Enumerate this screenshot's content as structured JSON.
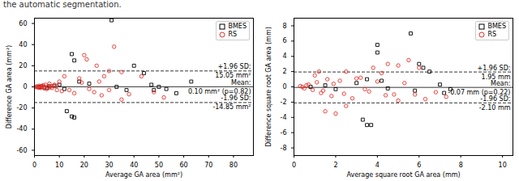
{
  "caption": "the automatic segmentation.",
  "chart_data": [
    {
      "type": "scatter",
      "x_label": "Average GA area (mm²)",
      "y_label": "Difference GA area (mm²)",
      "xlim": [
        0,
        88
      ],
      "xticks": [
        0,
        10,
        20,
        30,
        40,
        50,
        60,
        70,
        80
      ],
      "ylim": [
        -65,
        65
      ],
      "yticks": [
        -60,
        -40,
        -20,
        0,
        20,
        40,
        60
      ],
      "grid": false,
      "legend": "upper right",
      "series": [
        {
          "name": "BMES",
          "color": "#000000",
          "marker": "square",
          "x": [
            31,
            15,
            16,
            13,
            15,
            16,
            40,
            44,
            47,
            48,
            53,
            57,
            63,
            50,
            33,
            37,
            18,
            22,
            10,
            3,
            5,
            8,
            12,
            6,
            2,
            4
          ],
          "values": [
            63,
            31,
            25,
            -23,
            -28,
            -29,
            20,
            13,
            2,
            -3,
            -2,
            -6,
            5,
            0,
            0,
            -3,
            5,
            3,
            2,
            0,
            -1,
            1,
            -2,
            0.5,
            0,
            -0.5
          ]
        },
        {
          "name": "RS",
          "color": "#e8312a",
          "marker": "circle",
          "x": [
            32,
            20,
            21,
            25,
            30,
            28,
            35,
            43,
            38,
            48,
            52,
            35,
            30,
            24,
            22,
            18,
            12,
            10,
            14,
            1,
            1.5,
            2,
            2.5,
            3,
            3.5,
            4,
            4.5,
            5,
            5.5,
            6,
            7,
            8,
            9,
            0.5,
            1,
            2,
            3,
            4,
            6,
            7,
            9,
            11,
            16,
            19,
            26,
            27
          ],
          "values": [
            38,
            30,
            26,
            20,
            15,
            10,
            14,
            10,
            -7,
            -5,
            -10,
            -12,
            -3,
            -5,
            -2,
            8,
            10,
            5,
            -3,
            0.5,
            -0.5,
            1,
            -1,
            0.3,
            1.5,
            -1.5,
            2,
            -2,
            0.5,
            3,
            -1,
            2,
            -3,
            0,
            -0.3,
            -0.8,
            0.8,
            -0.2,
            -0.5,
            0.5,
            1,
            -4,
            -6,
            4,
            5,
            -8
          ]
        }
      ],
      "reference_lines": [
        {
          "name": "+1.96 SD:",
          "value": 15.05,
          "label": "15.05 mm²",
          "line_style": "dashed"
        },
        {
          "name": "Mean:",
          "value": 0.1,
          "label": "0.10 mm² (p=0.82)",
          "line_style": "solid"
        },
        {
          "name": "-1.96 SD:",
          "value": -14.85,
          "label": "-14.85 mm²",
          "line_style": "dashed"
        }
      ]
    },
    {
      "type": "scatter",
      "x_label": "Average square root GA area (mm)",
      "y_label": "Difference square root GA area (mm)",
      "xlim": [
        0,
        10.5
      ],
      "xticks": [
        0,
        2,
        4,
        6,
        8,
        10
      ],
      "ylim": [
        -9,
        9
      ],
      "yticks": [
        -8,
        -6,
        -4,
        -2,
        0,
        2,
        4,
        6,
        8
      ],
      "grid": false,
      "legend": "upper right",
      "series": [
        {
          "name": "BMES",
          "color": "#000000",
          "marker": "square",
          "x": [
            5.6,
            4,
            4,
            3.3,
            3.5,
            3.7,
            6,
            6.5,
            7,
            7.5,
            7.2,
            5.8,
            4.2,
            3,
            2,
            1.5,
            0.8,
            6.2,
            4.5,
            3.5
          ],
          "values": [
            7,
            5.5,
            4.5,
            -4.3,
            -5,
            -5,
            3,
            2,
            0.3,
            -0.3,
            -0.8,
            -0.5,
            0.8,
            0.5,
            -0.3,
            0.2,
            0,
            2.5,
            -0.2,
            1
          ]
        },
        {
          "name": "RS",
          "color": "#e8312a",
          "marker": "circle",
          "x": [
            5.5,
            4.5,
            5,
            6,
            3.8,
            2.5,
            5.8,
            6.8,
            7.3,
            5,
            1.5,
            2,
            2.5,
            1.2,
            1,
            0.3,
            0.5,
            0.7,
            0.9,
            1.1,
            1.3,
            1.6,
            1.8,
            2.2,
            2.8,
            3.2,
            3.6,
            4.2,
            4.8,
            5.3,
            6.3,
            0.4,
            0.6,
            1.4,
            1.9,
            2.4,
            3,
            3.4,
            4,
            4.4
          ],
          "values": [
            3.5,
            3,
            2.8,
            2.5,
            2.5,
            2,
            -1,
            -0.7,
            -1.3,
            -1.8,
            -3.2,
            -3.5,
            -2.5,
            2,
            1.5,
            0.1,
            -0.2,
            0.3,
            -0.4,
            0.6,
            -0.8,
            1,
            -1.2,
            0.8,
            -1.5,
            1.2,
            -0.6,
            1.8,
            -1,
            0.5,
            -1.6,
            0,
            0.2,
            -0.5,
            0.4,
            -0.9,
            1.1,
            -0.3,
            0.7,
            -1.1
          ]
        }
      ],
      "reference_lines": [
        {
          "name": "+1.96 SD:",
          "value": 1.95,
          "label": "1.95 mm",
          "line_style": "dashed"
        },
        {
          "name": "Mean:",
          "value": -0.07,
          "label": "-0.07 mm (p=0.22)",
          "line_style": "solid"
        },
        {
          "name": "-1.96 SD:",
          "value": -2.1,
          "label": "-2.10 mm",
          "line_style": "dashed"
        }
      ]
    }
  ]
}
